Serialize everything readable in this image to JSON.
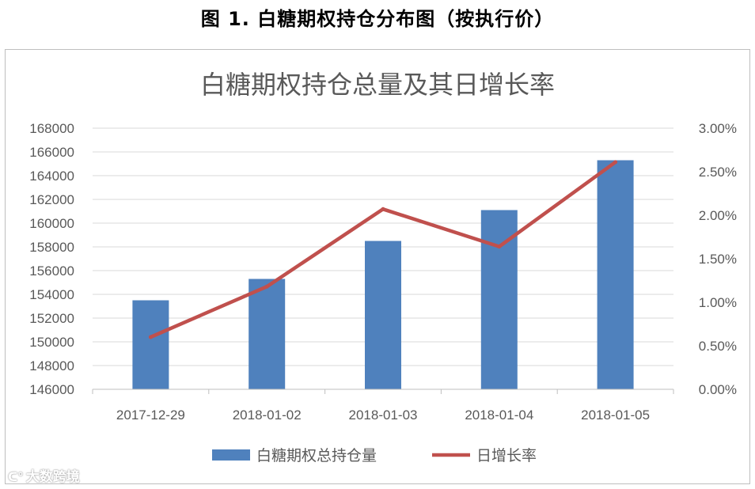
{
  "caption": "图 1. 白糖期权持仓分布图（按执行价）",
  "watermark": "大数跨境",
  "chart_data": {
    "type": "bar",
    "title": "白糖期权持仓总量及其日增长率",
    "categories": [
      "2017-12-29",
      "2018-01-02",
      "2018-01-03",
      "2018-01-04",
      "2018-01-05"
    ],
    "series": [
      {
        "name": "白糖期权总持仓量",
        "type": "bar",
        "axis": "left",
        "color": "#4f81bd",
        "values": [
          153500,
          155300,
          158500,
          161100,
          165300
        ]
      },
      {
        "name": "日增长率",
        "type": "line",
        "axis": "right",
        "color": "#c0504d",
        "values": [
          0.006,
          0.0118,
          0.0207,
          0.0164,
          0.0261
        ]
      }
    ],
    "y_left": {
      "min": 146000,
      "max": 168000,
      "step": 2000,
      "ticks": [
        "146000",
        "148000",
        "150000",
        "152000",
        "154000",
        "156000",
        "158000",
        "160000",
        "162000",
        "164000",
        "166000",
        "168000"
      ]
    },
    "y_right": {
      "min": 0,
      "max": 0.03,
      "step": 0.005,
      "ticks": [
        "0.00%",
        "0.50%",
        "1.00%",
        "1.50%",
        "2.00%",
        "2.50%",
        "3.00%"
      ]
    },
    "grid": true,
    "legend_position": "bottom"
  }
}
